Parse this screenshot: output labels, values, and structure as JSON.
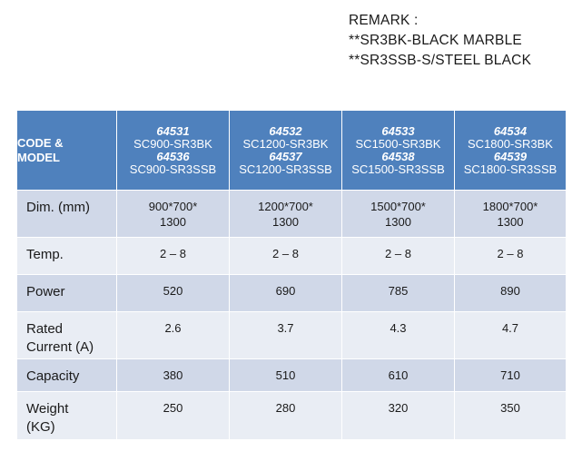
{
  "remark": {
    "title": "REMARK :",
    "lines": [
      "**SR3BK-BLACK MARBLE",
      "**SR3SSB-S/STEEL BLACK"
    ]
  },
  "table": {
    "header_label_line1": "CODE &",
    "header_label_line2": "MODEL",
    "columns": [
      {
        "code1": "64531",
        "model1": "SC900-SR3BK",
        "code2": "64536",
        "model2": "SC900-SR3SSB"
      },
      {
        "code1": "64532",
        "model1": "SC1200-SR3BK",
        "code2": "64537",
        "model2": "SC1200-SR3SSB"
      },
      {
        "code1": "64533",
        "model1": "SC1500-SR3BK",
        "code2": "64538",
        "model2": "SC1500-SR3SSB"
      },
      {
        "code1": "64534",
        "model1": "SC1800-SR3BK",
        "code2": "64539",
        "model2": "SC1800-SR3SSB"
      }
    ],
    "rows": [
      {
        "label1": "Dim. (mm)",
        "label2": "",
        "values": [
          [
            "900*700*",
            "1300"
          ],
          [
            "1200*700*",
            "1300"
          ],
          [
            "1500*700*",
            "1300"
          ],
          [
            "1800*700*",
            "1300"
          ]
        ]
      },
      {
        "label1": "Temp.",
        "label2": "",
        "values": [
          [
            "2 – 8"
          ],
          [
            "2 – 8"
          ],
          [
            "2 – 8"
          ],
          [
            "2 – 8"
          ]
        ]
      },
      {
        "label1": "Power",
        "label2": "",
        "values": [
          [
            "520"
          ],
          [
            "690"
          ],
          [
            "785"
          ],
          [
            "890"
          ]
        ]
      },
      {
        "label1": "Rated",
        "label2": "Current (A)",
        "values": [
          [
            "2.6"
          ],
          [
            "3.7"
          ],
          [
            "4.3"
          ],
          [
            "4.7"
          ]
        ]
      },
      {
        "label1": "Capacity",
        "label2": "",
        "values": [
          [
            "380"
          ],
          [
            "510"
          ],
          [
            "610"
          ],
          [
            "710"
          ]
        ]
      },
      {
        "label1": "Weight",
        "label2": "(KG)",
        "values": [
          [
            "250"
          ],
          [
            "280"
          ],
          [
            "320"
          ],
          [
            "350"
          ]
        ]
      }
    ]
  }
}
